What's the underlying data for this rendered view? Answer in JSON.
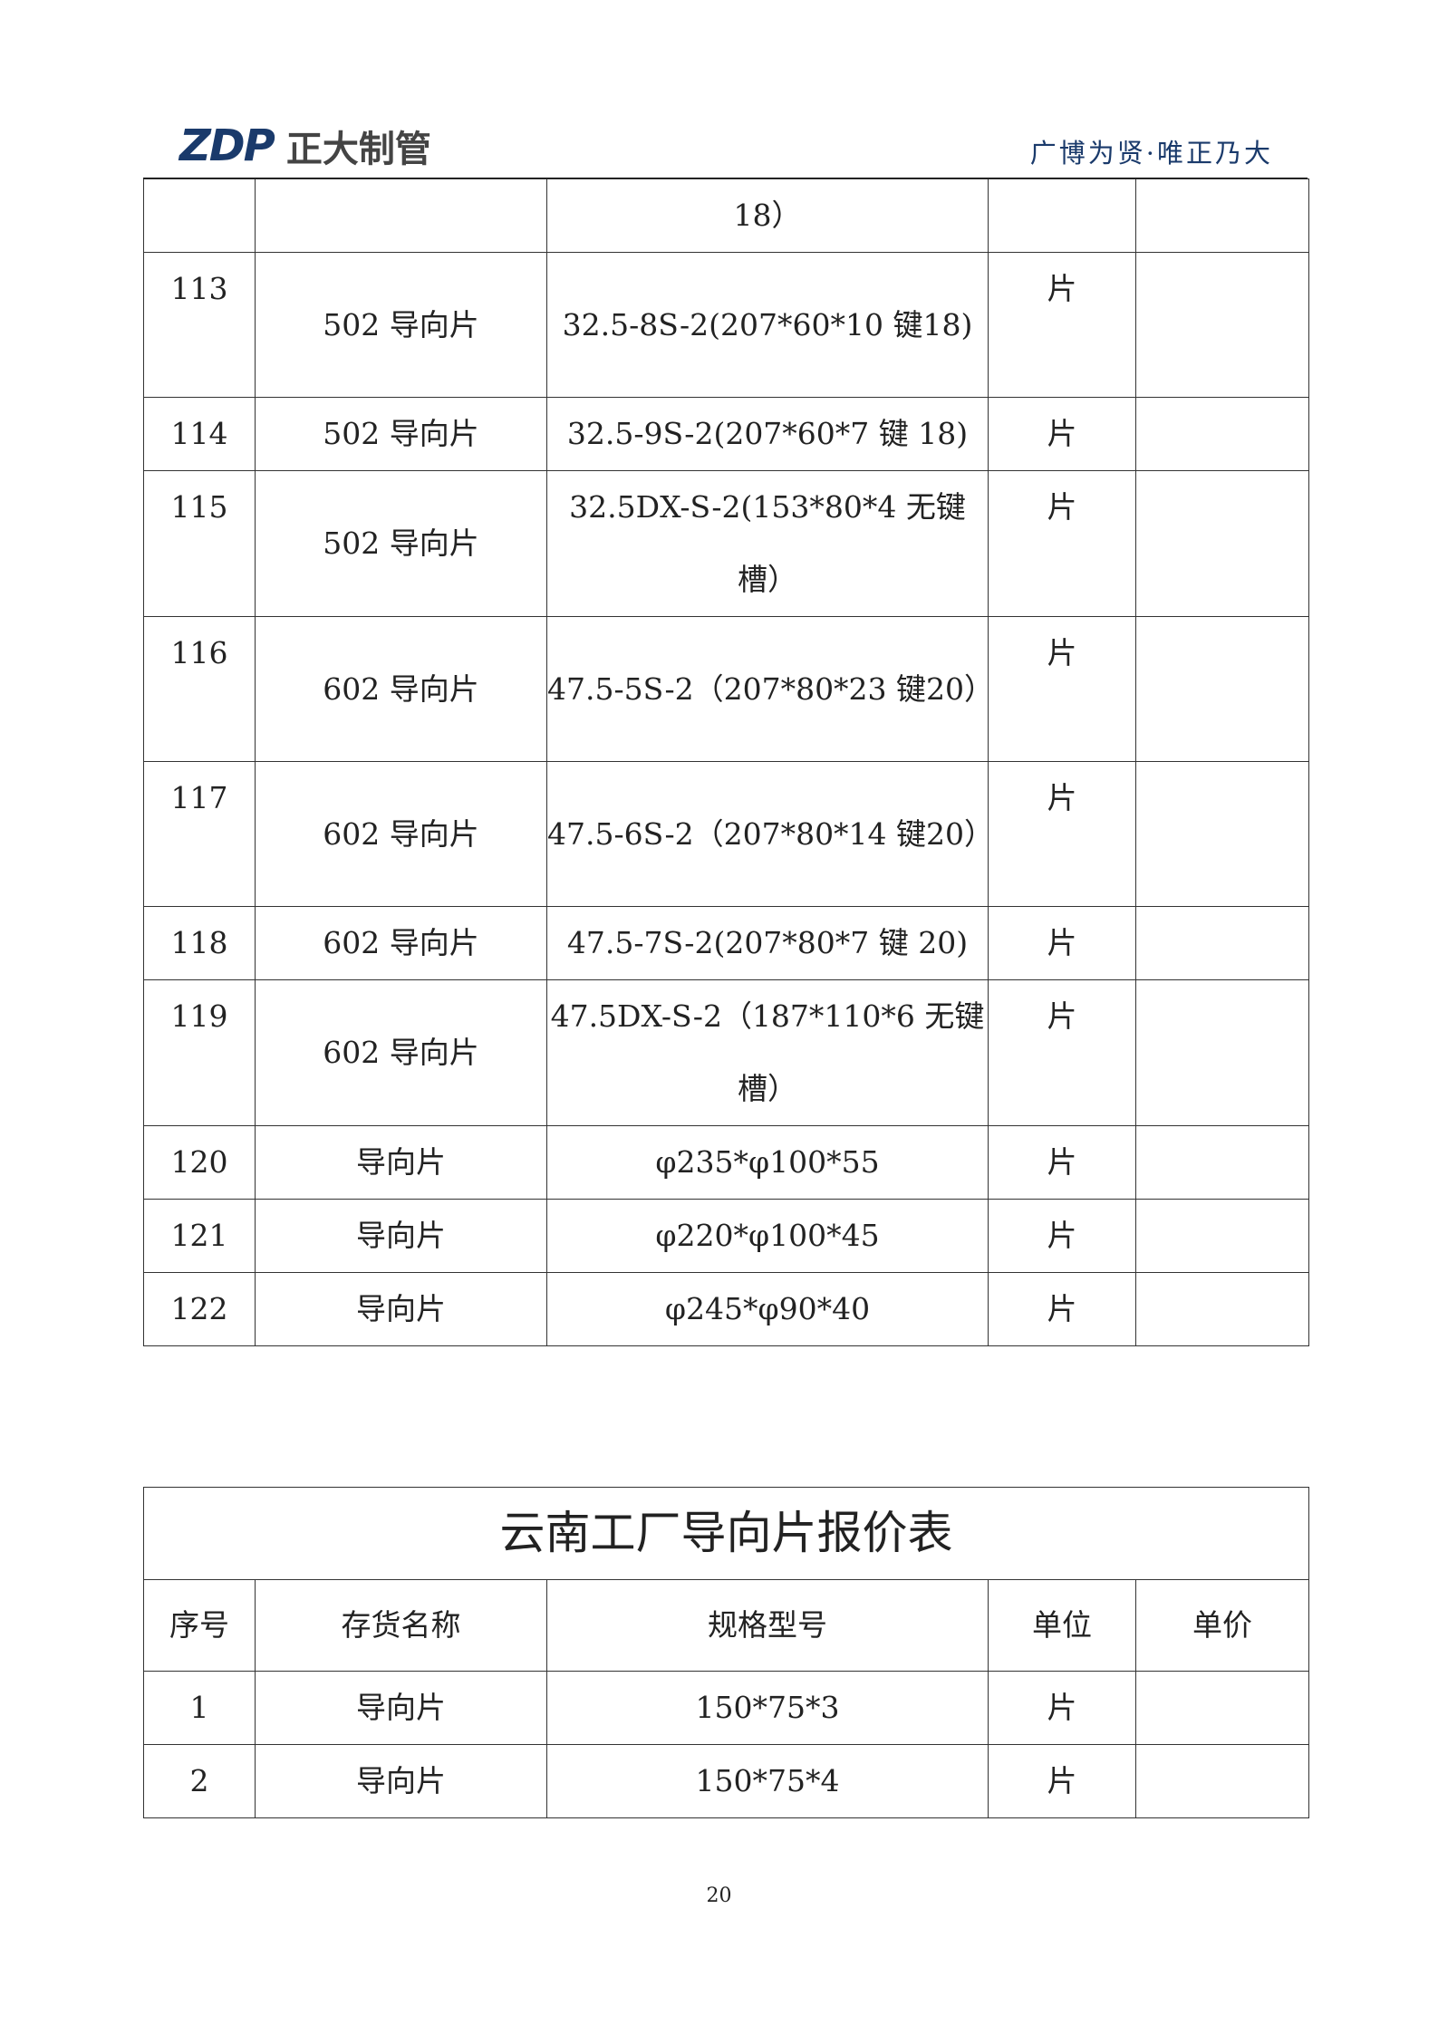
{
  "header": {
    "logo_mark": "ZDP",
    "logo_text": "正大制管",
    "slogan": "广博为贤·唯正乃大"
  },
  "table1": {
    "rows": [
      {
        "no": "",
        "name": "",
        "spec": "18）",
        "unit": "",
        "price": "",
        "tall": false
      },
      {
        "no": "113",
        "name": "502 导向片",
        "spec": "32.5-8S-2(207*60*10 键18)",
        "unit": "片",
        "price": "",
        "tall": true
      },
      {
        "no": "114",
        "name": "502 导向片",
        "spec": "32.5-9S-2(207*60*7 键 18)",
        "unit": "片",
        "price": "",
        "tall": false
      },
      {
        "no": "115",
        "name": "502 导向片",
        "spec": "32.5DX-S-2(153*80*4 无键槽）",
        "unit": "片",
        "price": "",
        "tall": true
      },
      {
        "no": "116",
        "name": "602 导向片",
        "spec": "47.5-5S-2（207*80*23 键20）",
        "unit": "片",
        "price": "",
        "tall": true
      },
      {
        "no": "117",
        "name": "602 导向片",
        "spec": "47.5-6S-2（207*80*14 键20）",
        "unit": "片",
        "price": "",
        "tall": true
      },
      {
        "no": "118",
        "name": "602 导向片",
        "spec": "47.5-7S-2(207*80*7 键 20)",
        "unit": "片",
        "price": "",
        "tall": false
      },
      {
        "no": "119",
        "name": "602 导向片",
        "spec": "47.5DX-S-2（187*110*6 无键槽）",
        "unit": "片",
        "price": "",
        "tall": true
      },
      {
        "no": "120",
        "name": "导向片",
        "spec": "φ235*φ100*55",
        "unit": "片",
        "price": "",
        "tall": false
      },
      {
        "no": "121",
        "name": "导向片",
        "spec": "φ220*φ100*45",
        "unit": "片",
        "price": "",
        "tall": false
      },
      {
        "no": "122",
        "name": "导向片",
        "spec": "φ245*φ90*40",
        "unit": "片",
        "price": "",
        "tall": false
      }
    ]
  },
  "table2": {
    "title": "云南工厂导向片报价表",
    "headers": [
      "序号",
      "存货名称",
      "规格型号",
      "单位",
      "单价"
    ],
    "rows": [
      {
        "no": "1",
        "name": "导向片",
        "spec": "150*75*3",
        "unit": "片",
        "price": ""
      },
      {
        "no": "2",
        "name": "导向片",
        "spec": "150*75*4",
        "unit": "片",
        "price": ""
      }
    ]
  },
  "page_number": "20"
}
